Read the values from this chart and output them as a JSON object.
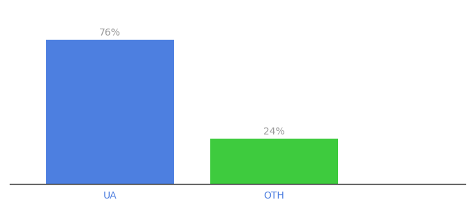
{
  "categories": [
    "UA",
    "OTH"
  ],
  "values": [
    76,
    24
  ],
  "bar_colors": [
    "#4d7fe0",
    "#3ecb3e"
  ],
  "label_format": [
    "76%",
    "24%"
  ],
  "ylim": [
    0,
    88
  ],
  "background_color": "#ffffff",
  "label_color": "#999999",
  "bar_width": 0.28,
  "x_positions": [
    0.22,
    0.58
  ],
  "xlim": [
    0.0,
    1.0
  ],
  "value_label_fontsize": 10,
  "axis_label_fontsize": 10,
  "tick_label_color": "#4d7fe0"
}
